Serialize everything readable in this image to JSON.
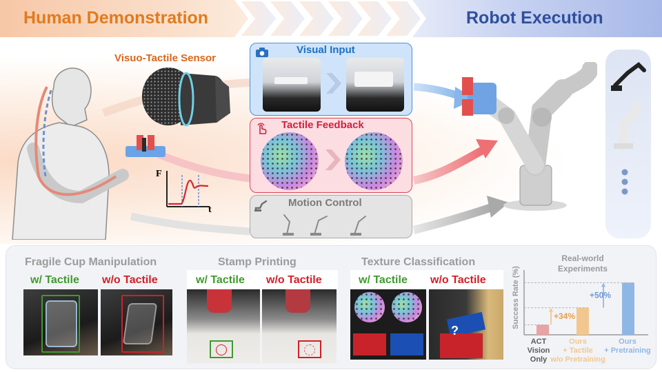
{
  "header": {
    "left_title": "Human Demonstration",
    "right_title": "Robot Execution"
  },
  "sensor": {
    "label": "Visuo-Tactile Sensor"
  },
  "force_plot": {
    "y_label": "F",
    "x_label": "t"
  },
  "panels": {
    "visual": {
      "title": "Visual Input"
    },
    "tactile": {
      "title": "Tactile Feedback"
    },
    "motion": {
      "title": "Motion Control"
    }
  },
  "tasks": [
    {
      "title": "Fragile Cup Manipulation",
      "with_label": "w/ Tactile",
      "without_label": "w/o Tactile"
    },
    {
      "title": "Stamp Printing",
      "with_label": "w/ Tactile",
      "without_label": "w/o Tactile"
    },
    {
      "title": "Texture Classification",
      "with_label": "w/ Tactile",
      "without_label": "w/o Tactile",
      "question": "?"
    }
  ],
  "chart_data": {
    "type": "bar",
    "title": "Real-world Experiments",
    "ylabel": "Success Rate (%)",
    "categories": [
      "ACT Vision Only",
      "Ours + Tactile w/o Pretraining",
      "Ours + Pretraining"
    ],
    "category_lines": [
      [
        "ACT",
        "Vision",
        "Only"
      ],
      [
        "Ours",
        "+ Tactile",
        "w/o Pretraining"
      ],
      [
        "Ours",
        "+ Pretraining"
      ]
    ],
    "values": [
      20,
      54,
      104
    ],
    "ylim": [
      0,
      110
    ],
    "annotations": [
      "+34%",
      "+50%"
    ],
    "colors": [
      "#e8a3a3",
      "#f2c78f",
      "#8fb7e6"
    ]
  },
  "colors": {
    "human": "#e07b1f",
    "robot": "#2f4f9c",
    "visual": "#1f6fc2",
    "tactile": "#d21f3c",
    "motion": "#8a8a8a",
    "with_tactile": "#3f9a2e",
    "without_tactile": "#d21f26"
  }
}
